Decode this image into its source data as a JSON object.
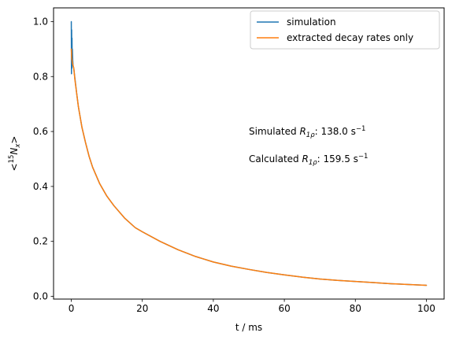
{
  "chart_data": {
    "type": "line",
    "xlabel": "t / ms",
    "ylabel": {
      "prefix": "<",
      "sup": "15",
      "main": "N",
      "sub": "x",
      "suffix": ">"
    },
    "xlim": [
      -5,
      105
    ],
    "ylim": [
      -0.01,
      1.05
    ],
    "xticks": [
      0,
      20,
      40,
      60,
      80,
      100
    ],
    "xtick_labels": [
      "0",
      "20",
      "40",
      "60",
      "80",
      "100"
    ],
    "yticks": [
      0.0,
      0.2,
      0.4,
      0.6,
      0.8,
      1.0
    ],
    "ytick_labels": [
      "0.0",
      "0.2",
      "0.4",
      "0.6",
      "0.8",
      "1.0"
    ],
    "grid": false,
    "legend": "top-right",
    "series": [
      {
        "name": "simulation",
        "color": "#1f77b4",
        "x": [
          0,
          0.05,
          0.1,
          0.15,
          0.2,
          0.25,
          0.3,
          0.4,
          0.5,
          0.7,
          1,
          1.5,
          2,
          3,
          4,
          5,
          6,
          8,
          10,
          12,
          15,
          18,
          20,
          25,
          30,
          35,
          40,
          45,
          50,
          55,
          60,
          65,
          70,
          75,
          80,
          85,
          90,
          95,
          100
        ],
        "y": [
          1.0,
          0.81,
          0.97,
          0.83,
          0.94,
          0.85,
          0.9,
          0.86,
          0.84,
          0.83,
          0.795,
          0.74,
          0.69,
          0.615,
          0.56,
          0.51,
          0.47,
          0.41,
          0.365,
          0.33,
          0.285,
          0.25,
          0.235,
          0.2,
          0.17,
          0.145,
          0.125,
          0.11,
          0.098,
          0.087,
          0.078,
          0.07,
          0.063,
          0.058,
          0.054,
          0.05,
          0.046,
          0.043,
          0.04
        ]
      },
      {
        "name": "extracted decay rates only",
        "color": "#ff7f0e",
        "x": [
          0,
          0.1,
          0.2,
          0.3,
          0.5,
          0.7,
          1,
          1.5,
          2,
          3,
          4,
          5,
          6,
          8,
          10,
          12,
          15,
          18,
          20,
          25,
          30,
          35,
          40,
          45,
          50,
          55,
          60,
          65,
          70,
          75,
          80,
          85,
          90,
          95,
          100
        ],
        "y": [
          0.9,
          0.87,
          0.86,
          0.85,
          0.84,
          0.83,
          0.79,
          0.74,
          0.69,
          0.615,
          0.56,
          0.51,
          0.47,
          0.41,
          0.365,
          0.33,
          0.285,
          0.25,
          0.235,
          0.2,
          0.17,
          0.145,
          0.125,
          0.11,
          0.098,
          0.087,
          0.078,
          0.07,
          0.063,
          0.058,
          0.054,
          0.05,
          0.046,
          0.043,
          0.04
        ]
      }
    ],
    "annotations": [
      {
        "x": 50,
        "y": 0.6,
        "prefix": "Simulated ",
        "var": "R",
        "sub": "1ρ",
        "value": ": 138.0 s",
        "sup": "−1"
      },
      {
        "x": 50,
        "y": 0.5,
        "prefix": "Calculated ",
        "var": "R",
        "sub": "1ρ",
        "value": ": 159.5 s",
        "sup": "−1"
      }
    ]
  }
}
